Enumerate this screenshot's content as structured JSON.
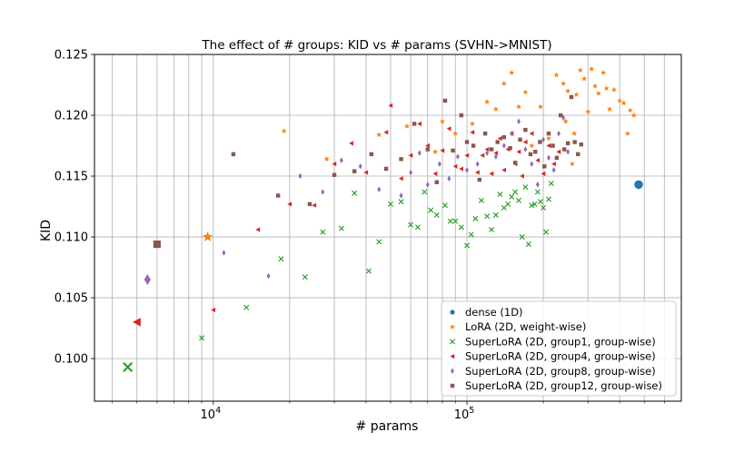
{
  "chart_data": {
    "type": "scatter",
    "title": "The effect of # groups: KID vs # params (SVHN->MNIST)",
    "xlabel": "# params",
    "ylabel": "KID",
    "xscale": "log",
    "xlim": [
      3400,
      700000
    ],
    "ylim": [
      0.0965,
      0.125
    ],
    "grid": true,
    "legend_position": "lower-right",
    "x_major_ticks": [
      {
        "value": 10000,
        "base": "10",
        "exp": "4"
      },
      {
        "value": 100000,
        "base": "10",
        "exp": "5"
      }
    ],
    "x_minor_ticks": [
      4000,
      5000,
      6000,
      7000,
      8000,
      9000,
      20000,
      30000,
      40000,
      50000,
      60000,
      70000,
      80000,
      90000,
      200000,
      300000,
      400000,
      500000,
      600000
    ],
    "y_ticks": [
      "0.100",
      "0.105",
      "0.110",
      "0.115",
      "0.120",
      "0.125"
    ],
    "series": [
      {
        "name": "dense (1D)",
        "color": "#1f77b4",
        "marker": "circle",
        "points": [
          [
            475000,
            0.1143
          ]
        ]
      },
      {
        "name": "LoRA (2D, weight-wise)",
        "color": "#ff7f0e",
        "marker": "star",
        "points": [
          [
            9500,
            0.11
          ],
          [
            19000,
            0.1187
          ],
          [
            28000,
            0.1164
          ],
          [
            45000,
            0.1184
          ],
          [
            58000,
            0.1191
          ],
          [
            75000,
            0.117
          ],
          [
            80000,
            0.1195
          ],
          [
            90000,
            0.1185
          ],
          [
            105000,
            0.1193
          ],
          [
            120000,
            0.1211
          ],
          [
            130000,
            0.1205
          ],
          [
            140000,
            0.1226
          ],
          [
            150000,
            0.1235
          ],
          [
            160000,
            0.1207
          ],
          [
            170000,
            0.1219
          ],
          [
            180000,
            0.1175
          ],
          [
            195000,
            0.1207
          ],
          [
            210000,
            0.1181
          ],
          [
            225000,
            0.1233
          ],
          [
            240000,
            0.1226
          ],
          [
            250000,
            0.122
          ],
          [
            260000,
            0.116
          ],
          [
            270000,
            0.1217
          ],
          [
            280000,
            0.1237
          ],
          [
            290000,
            0.123
          ],
          [
            300000,
            0.1203
          ],
          [
            310000,
            0.1238
          ],
          [
            320000,
            0.1224
          ],
          [
            330000,
            0.1218
          ],
          [
            345000,
            0.1235
          ],
          [
            355000,
            0.1222
          ],
          [
            365000,
            0.1205
          ],
          [
            380000,
            0.1221
          ],
          [
            400000,
            0.1212
          ],
          [
            415000,
            0.121
          ],
          [
            430000,
            0.1185
          ],
          [
            440000,
            0.1204
          ],
          [
            455000,
            0.12
          ],
          [
            245000,
            0.1195
          ],
          [
            265000,
            0.1185
          ]
        ]
      },
      {
        "name": "SuperLoRA (2D, group1, group-wise)",
        "color": "#2ca02c",
        "marker": "x",
        "points": [
          [
            4600,
            0.0993
          ],
          [
            9000,
            0.1017
          ],
          [
            13500,
            0.1042
          ],
          [
            18500,
            0.1082
          ],
          [
            23000,
            0.1067
          ],
          [
            27000,
            0.1104
          ],
          [
            32000,
            0.1107
          ],
          [
            36000,
            0.1136
          ],
          [
            41000,
            0.1072
          ],
          [
            45000,
            0.1096
          ],
          [
            50000,
            0.1127
          ],
          [
            55000,
            0.1129
          ],
          [
            60000,
            0.111
          ],
          [
            64000,
            0.1108
          ],
          [
            68000,
            0.1137
          ],
          [
            72000,
            0.1122
          ],
          [
            76000,
            0.1118
          ],
          [
            82000,
            0.1126
          ],
          [
            86000,
            0.1113
          ],
          [
            90000,
            0.1113
          ],
          [
            95000,
            0.1108
          ],
          [
            100000,
            0.1093
          ],
          [
            104000,
            0.1102
          ],
          [
            108000,
            0.1115
          ],
          [
            114000,
            0.113
          ],
          [
            120000,
            0.1117
          ],
          [
            125000,
            0.1106
          ],
          [
            130000,
            0.1118
          ],
          [
            135000,
            0.1135
          ],
          [
            140000,
            0.1124
          ],
          [
            145000,
            0.1127
          ],
          [
            150000,
            0.1133
          ],
          [
            155000,
            0.1137
          ],
          [
            160000,
            0.113
          ],
          [
            165000,
            0.11
          ],
          [
            170000,
            0.1141
          ],
          [
            175000,
            0.1094
          ],
          [
            180000,
            0.1126
          ],
          [
            185000,
            0.1127
          ],
          [
            190000,
            0.1137
          ],
          [
            195000,
            0.1129
          ],
          [
            200000,
            0.1124
          ],
          [
            205000,
            0.1104
          ],
          [
            210000,
            0.1131
          ],
          [
            215000,
            0.1144
          ]
        ]
      },
      {
        "name": "SuperLoRA (2D, group4, group-wise)",
        "color": "#d62728",
        "marker": "triangle-left",
        "points": [
          [
            5000,
            0.103
          ],
          [
            10000,
            0.104
          ],
          [
            15000,
            0.1106
          ],
          [
            20000,
            0.1127
          ],
          [
            25000,
            0.1126
          ],
          [
            30000,
            0.116
          ],
          [
            35000,
            0.1177
          ],
          [
            40000,
            0.1153
          ],
          [
            48000,
            0.1186
          ],
          [
            50000,
            0.1208
          ],
          [
            55000,
            0.1148
          ],
          [
            60000,
            0.1167
          ],
          [
            65000,
            0.1193
          ],
          [
            70000,
            0.1175
          ],
          [
            75000,
            0.1152
          ],
          [
            80000,
            0.1171
          ],
          [
            85000,
            0.1189
          ],
          [
            90000,
            0.1158
          ],
          [
            95000,
            0.1156
          ],
          [
            100000,
            0.1167
          ],
          [
            105000,
            0.1186
          ],
          [
            110000,
            0.1153
          ],
          [
            115000,
            0.1167
          ],
          [
            120000,
            0.1172
          ],
          [
            125000,
            0.1152
          ],
          [
            130000,
            0.1169
          ],
          [
            135000,
            0.1181
          ],
          [
            140000,
            0.1155
          ],
          [
            145000,
            0.1172
          ],
          [
            150000,
            0.1185
          ],
          [
            155000,
            0.116
          ],
          [
            160000,
            0.117
          ],
          [
            165000,
            0.115
          ],
          [
            170000,
            0.1178
          ],
          [
            180000,
            0.1185
          ],
          [
            190000,
            0.1163
          ],
          [
            200000,
            0.1152
          ],
          [
            210000,
            0.1175
          ],
          [
            220000,
            0.116
          ],
          [
            230000,
            0.117
          ]
        ]
      },
      {
        "name": "SuperLoRA (2D, group8, group-wise)",
        "color": "#9467bd",
        "marker": "diamond",
        "points": [
          [
            5500,
            0.1065
          ],
          [
            11000,
            0.1087
          ],
          [
            16500,
            0.1068
          ],
          [
            22000,
            0.115
          ],
          [
            27000,
            0.1137
          ],
          [
            32000,
            0.1163
          ],
          [
            38000,
            0.1158
          ],
          [
            45000,
            0.1139
          ],
          [
            55000,
            0.1134
          ],
          [
            60000,
            0.1153
          ],
          [
            65000,
            0.1169
          ],
          [
            70000,
            0.1143
          ],
          [
            78000,
            0.116
          ],
          [
            85000,
            0.1148
          ],
          [
            92000,
            0.1166
          ],
          [
            100000,
            0.1155
          ],
          [
            110000,
            0.116
          ],
          [
            120000,
            0.1169
          ],
          [
            130000,
            0.1166
          ],
          [
            140000,
            0.1175
          ],
          [
            150000,
            0.1185
          ],
          [
            160000,
            0.1195
          ],
          [
            170000,
            0.1172
          ],
          [
            180000,
            0.116
          ],
          [
            190000,
            0.1143
          ],
          [
            200000,
            0.118
          ],
          [
            210000,
            0.1165
          ],
          [
            220000,
            0.1155
          ],
          [
            230000,
            0.1185
          ],
          [
            240000,
            0.1198
          ],
          [
            250000,
            0.117
          ]
        ]
      },
      {
        "name": "SuperLoRA (2D, group12, group-wise)",
        "color": "#8c564b",
        "marker": "square",
        "points": [
          [
            6000,
            0.1094
          ],
          [
            12000,
            0.1168
          ],
          [
            18000,
            0.1134
          ],
          [
            24000,
            0.1127
          ],
          [
            30000,
            0.1151
          ],
          [
            36000,
            0.1154
          ],
          [
            42000,
            0.1168
          ],
          [
            48000,
            0.1156
          ],
          [
            55000,
            0.1164
          ],
          [
            62000,
            0.1193
          ],
          [
            70000,
            0.1172
          ],
          [
            76000,
            0.1145
          ],
          [
            82000,
            0.1212
          ],
          [
            88000,
            0.1171
          ],
          [
            95000,
            0.12
          ],
          [
            100000,
            0.1178
          ],
          [
            106000,
            0.1175
          ],
          [
            112000,
            0.1147
          ],
          [
            118000,
            0.1185
          ],
          [
            125000,
            0.1172
          ],
          [
            132000,
            0.1178
          ],
          [
            140000,
            0.1182
          ],
          [
            148000,
            0.1173
          ],
          [
            155000,
            0.1161
          ],
          [
            162000,
            0.118
          ],
          [
            170000,
            0.1188
          ],
          [
            178000,
            0.1168
          ],
          [
            186000,
            0.117
          ],
          [
            194000,
            0.1178
          ],
          [
            202000,
            0.1158
          ],
          [
            210000,
            0.1185
          ],
          [
            218000,
            0.1175
          ],
          [
            226000,
            0.1165
          ],
          [
            234000,
            0.12
          ],
          [
            242000,
            0.1172
          ],
          [
            250000,
            0.1177
          ],
          [
            258000,
            0.1215
          ],
          [
            266000,
            0.1178
          ],
          [
            274000,
            0.1168
          ],
          [
            282000,
            0.1176
          ]
        ]
      }
    ]
  }
}
